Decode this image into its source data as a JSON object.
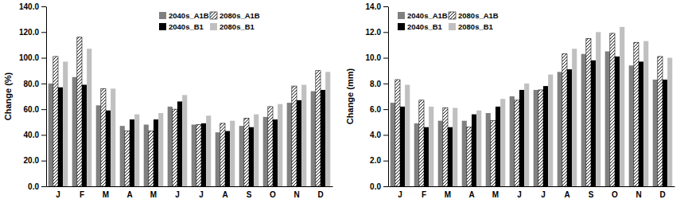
{
  "chart_data": [
    {
      "type": "bar",
      "y_label": "Change (%)",
      "categories": [
        "J",
        "F",
        "M",
        "A",
        "M",
        "J",
        "J",
        "A",
        "S",
        "O",
        "N",
        "D"
      ],
      "series": [
        {
          "name": "2040s_A1B",
          "color": "#808080",
          "values": [
            80,
            85,
            63,
            47,
            48,
            62,
            48,
            42,
            47,
            54,
            65,
            74
          ]
        },
        {
          "name": "2080s_A1B",
          "color": "#ffffff",
          "line_style": "hatched",
          "values": [
            101,
            116,
            76,
            43,
            43,
            60,
            48,
            49,
            53,
            62,
            78,
            90
          ]
        },
        {
          "name": "2040s_B1",
          "color": "#000000",
          "values": [
            77,
            79,
            59,
            52,
            52,
            66,
            49,
            43,
            46,
            52,
            67,
            75
          ]
        },
        {
          "name": "2080s_B1",
          "color": "#c0c0c0",
          "values": [
            97,
            107,
            76,
            56,
            57,
            71,
            55,
            51,
            56,
            64,
            79,
            89
          ]
        }
      ],
      "ylim": [
        0,
        140
      ],
      "yticks": [
        {
          "value": 0,
          "label": "0.0"
        },
        {
          "value": 20,
          "label": "20.0"
        },
        {
          "value": 40,
          "label": "40.0"
        },
        {
          "value": 60,
          "label": "60.0"
        },
        {
          "value": 80,
          "label": "80.0"
        },
        {
          "value": 100,
          "label": "100.0"
        },
        {
          "value": 120,
          "label": "120.0"
        },
        {
          "value": 140,
          "label": "140.0"
        }
      ],
      "grid": false,
      "legend": "top-right"
    },
    {
      "type": "bar",
      "y_label": "Change (mm)",
      "categories": [
        "J",
        "F",
        "M",
        "A",
        "M",
        "J",
        "J",
        "A",
        "S",
        "O",
        "N",
        "D"
      ],
      "series": [
        {
          "name": "2040s_A1B",
          "color": "#808080",
          "values": [
            6.5,
            4.9,
            5.1,
            5.1,
            5.7,
            7.0,
            7.5,
            8.9,
            10.3,
            10.5,
            9.4,
            8.3
          ]
        },
        {
          "name": "2080s_A1B",
          "color": "#ffffff",
          "line_style": "hatched",
          "values": [
            8.3,
            6.7,
            6.1,
            4.6,
            5.1,
            6.7,
            7.5,
            10.3,
            11.5,
            11.9,
            11.2,
            10.1
          ]
        },
        {
          "name": "2040s_B1",
          "color": "#000000",
          "values": [
            6.2,
            4.6,
            4.6,
            5.6,
            6.2,
            7.5,
            7.8,
            9.1,
            9.8,
            10.1,
            9.7,
            8.3
          ]
        },
        {
          "name": "2080s_B1",
          "color": "#c0c0c0",
          "values": [
            7.9,
            6.2,
            6.1,
            5.9,
            6.8,
            8.0,
            8.7,
            10.7,
            12.0,
            12.4,
            11.3,
            10.0
          ]
        }
      ],
      "ylim": [
        0,
        14
      ],
      "yticks": [
        {
          "value": 0,
          "label": "0.0"
        },
        {
          "value": 2,
          "label": "2.0"
        },
        {
          "value": 4,
          "label": "4.0"
        },
        {
          "value": 6,
          "label": "6.0"
        },
        {
          "value": 8,
          "label": "8.0"
        },
        {
          "value": 10,
          "label": "10.0"
        },
        {
          "value": 12,
          "label": "12.0"
        },
        {
          "value": 14,
          "label": "14.0"
        }
      ],
      "grid": false,
      "legend": "top-left"
    }
  ]
}
